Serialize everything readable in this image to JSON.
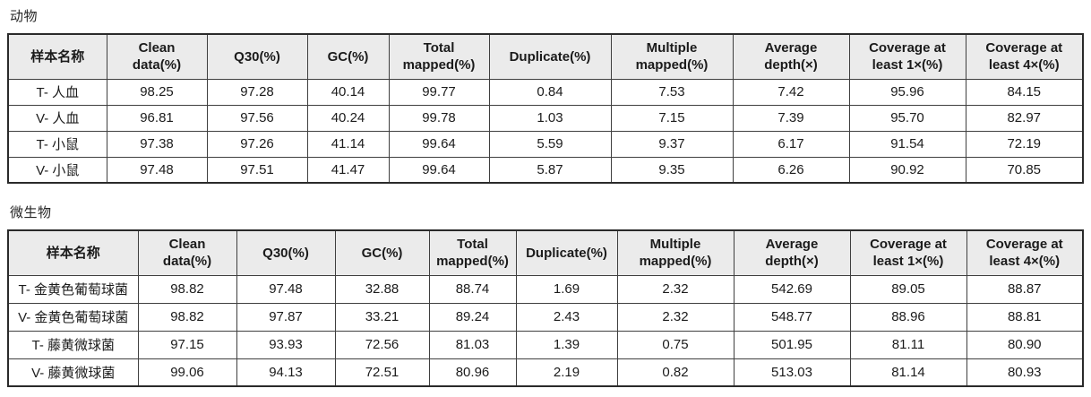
{
  "colors": {
    "header_bg": "#ebebeb",
    "border_inner": "#3f3f3f",
    "border_outer": "#2a2a2a",
    "text": "#1b1b1b"
  },
  "tables": [
    {
      "title": "动物",
      "headers": [
        "样本名称",
        "Clean\ndata(%)",
        "Q30(%)",
        "GC(%)",
        "Total\nmapped(%)",
        "Duplicate(%)",
        "Multiple\nmapped(%)",
        "Average\ndepth(×)",
        "Coverage at\nleast 1×(%)",
        "Coverage at\nleast 4×(%)"
      ],
      "rows": [
        [
          "T- 人血",
          "98.25",
          "97.28",
          "40.14",
          "99.77",
          "0.84",
          "7.53",
          "7.42",
          "95.96",
          "84.15"
        ],
        [
          "V- 人血",
          "96.81",
          "97.56",
          "40.24",
          "99.78",
          "1.03",
          "7.15",
          "7.39",
          "95.70",
          "82.97"
        ],
        [
          "T- 小鼠",
          "97.38",
          "97.26",
          "41.14",
          "99.64",
          "5.59",
          "9.37",
          "6.17",
          "91.54",
          "72.19"
        ],
        [
          "V- 小鼠",
          "97.48",
          "97.51",
          "41.47",
          "99.64",
          "5.87",
          "9.35",
          "6.26",
          "90.92",
          "70.85"
        ]
      ]
    },
    {
      "title": "微生物",
      "headers": [
        "样本名称",
        "Clean\ndata(%)",
        "Q30(%)",
        "GC(%)",
        "Total\nmapped(%)",
        "Duplicate(%)",
        "Multiple\nmapped(%)",
        "Average\ndepth(×)",
        "Coverage at\nleast 1×(%)",
        "Coverage at\nleast 4×(%)"
      ],
      "rows": [
        [
          "T- 金黄色葡萄球菌",
          "98.82",
          "97.48",
          "32.88",
          "88.74",
          "1.69",
          "2.32",
          "542.69",
          "89.05",
          "88.87"
        ],
        [
          "V- 金黄色葡萄球菌",
          "98.82",
          "97.87",
          "33.21",
          "89.24",
          "2.43",
          "2.32",
          "548.77",
          "88.96",
          "88.81"
        ],
        [
          "T- 藤黄微球菌",
          "97.15",
          "93.93",
          "72.56",
          "81.03",
          "1.39",
          "0.75",
          "501.95",
          "81.11",
          "80.90"
        ],
        [
          "V- 藤黄微球菌",
          "99.06",
          "94.13",
          "72.51",
          "80.96",
          "2.19",
          "0.82",
          "513.03",
          "81.14",
          "80.93"
        ]
      ]
    }
  ]
}
